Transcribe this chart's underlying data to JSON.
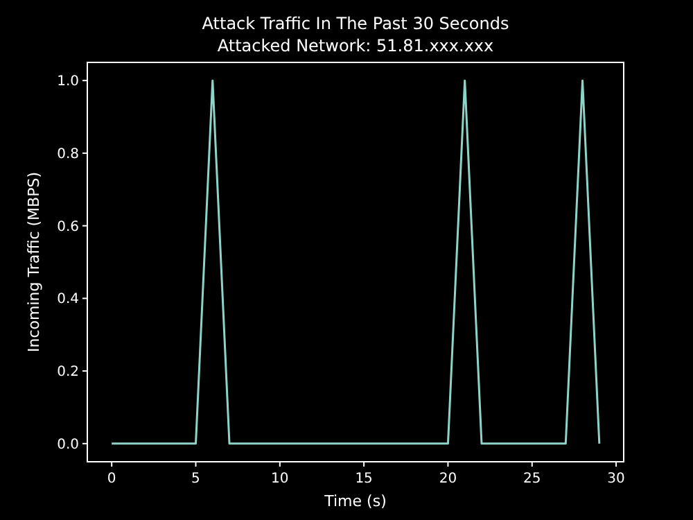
{
  "chart_data": {
    "type": "line",
    "title": "Attack Traffic In The Past 30 Seconds",
    "subtitle": "Attacked Network: 51.81.xxx.xxx",
    "xlabel": "Time (s)",
    "ylabel": "Incoming Traffic (MBPS)",
    "x": [
      0,
      1,
      2,
      3,
      4,
      5,
      6,
      7,
      8,
      9,
      10,
      11,
      12,
      13,
      14,
      15,
      16,
      17,
      18,
      19,
      20,
      21,
      22,
      23,
      24,
      25,
      26,
      27,
      28,
      29
    ],
    "series": [
      {
        "color": "#8dd3c7",
        "values": [
          0,
          0,
          0,
          0,
          0,
          0,
          1,
          0,
          0,
          0,
          0,
          0,
          0,
          0,
          0,
          0,
          0,
          0,
          0,
          0,
          0,
          1,
          0,
          0,
          0,
          0,
          0,
          0,
          1,
          0
        ]
      }
    ],
    "xlim": [
      -1.45,
      30.45
    ],
    "ylim": [
      -0.05,
      1.05
    ],
    "xticks": [
      0,
      5,
      10,
      15,
      20,
      25,
      30
    ],
    "yticks": [
      {
        "value": 0,
        "label": "0.0"
      },
      {
        "value": 0.2,
        "label": "0.2"
      },
      {
        "value": 0.4,
        "label": "0.4"
      },
      {
        "value": 0.6,
        "label": "0.6"
      },
      {
        "value": 0.8,
        "label": "0.8"
      },
      {
        "value": 1,
        "label": "1.0"
      }
    ],
    "grid": false,
    "marker": "none",
    "line_style": "solid"
  }
}
